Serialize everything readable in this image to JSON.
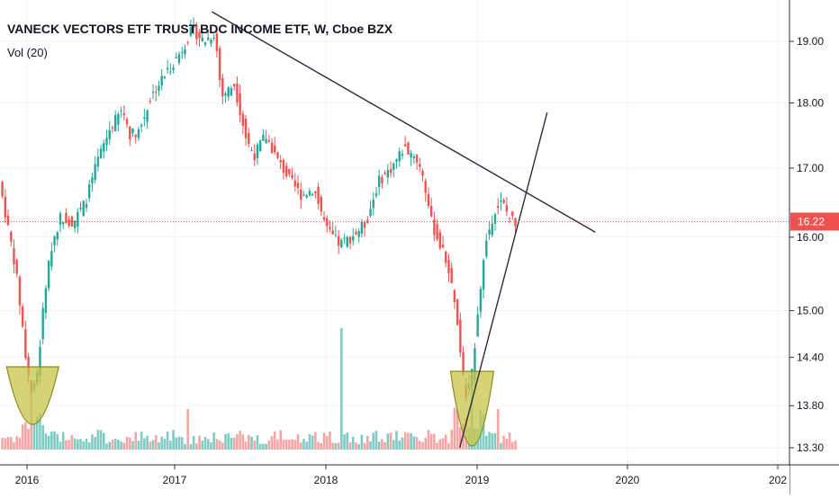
{
  "header": {
    "title": "VANECK VECTORS ETF TRUST BDC INCOME ETF, W, Cboe BZX",
    "volume_label": "Vol (20)"
  },
  "chart_data": {
    "type": "candlestick",
    "symbol": "VANECK VECTORS ETF TRUST BDC INCOME ETF",
    "interval": "W",
    "exchange": "Cboe BZX",
    "y_scale": "log",
    "ylim": [
      13.3,
      19.6
    ],
    "y_ticks": [
      "19.00",
      "18.00",
      "17.00",
      "16.00",
      "15.00",
      "14.40",
      "13.80",
      "13.30"
    ],
    "x_ticks": [
      "2016",
      "2017",
      "2018",
      "2019",
      "2020",
      "202"
    ],
    "last_price": "16.22",
    "colors": {
      "up": "#26a69a",
      "down": "#ef5350",
      "up_vol": "#80cbc4",
      "down_vol": "#f5a6a4",
      "last_line": "#ef5350",
      "cup_fill": "#c8c44a",
      "cup_stroke": "#8a8a20",
      "trendline": "#2b2b3b"
    },
    "price_path": [
      [
        "2015-11-01",
        16.8
      ],
      [
        "2015-11-20",
        16.2
      ],
      [
        "2015-12-10",
        15.6
      ],
      [
        "2015-12-28",
        14.8
      ],
      [
        "2016-01-10",
        14.2
      ],
      [
        "2016-01-22",
        13.9
      ],
      [
        "2016-02-05",
        14.3
      ],
      [
        "2016-02-20",
        15.2
      ],
      [
        "2016-03-10",
        15.9
      ],
      [
        "2016-04-01",
        16.3
      ],
      [
        "2016-05-01",
        16.2
      ],
      [
        "2016-06-01",
        16.5
      ],
      [
        "2016-07-01",
        17.1
      ],
      [
        "2016-08-01",
        17.6
      ],
      [
        "2016-09-01",
        17.9
      ],
      [
        "2016-09-20",
        17.5
      ],
      [
        "2016-10-15",
        17.6
      ],
      [
        "2016-11-10",
        18.1
      ],
      [
        "2016-12-10",
        18.4
      ],
      [
        "2017-01-20",
        18.8
      ],
      [
        "2017-02-20",
        19.2
      ],
      [
        "2017-03-20",
        19.0
      ],
      [
        "2017-04-15",
        19.15
      ],
      [
        "2017-05-01",
        18.1
      ],
      [
        "2017-06-01",
        18.3
      ],
      [
        "2017-07-01",
        17.4
      ],
      [
        "2017-07-20",
        17.2
      ],
      [
        "2017-08-15",
        17.5
      ],
      [
        "2017-09-15",
        17.1
      ],
      [
        "2017-10-15",
        16.8
      ],
      [
        "2017-11-10",
        16.6
      ],
      [
        "2017-12-10",
        16.7
      ],
      [
        "2018-01-10",
        16.1
      ],
      [
        "2018-02-10",
        15.9
      ],
      [
        "2018-03-10",
        16.0
      ],
      [
        "2018-04-15",
        16.2
      ],
      [
        "2018-05-15",
        16.8
      ],
      [
        "2018-06-15",
        17.0
      ],
      [
        "2018-07-15",
        17.3
      ],
      [
        "2018-08-10",
        17.2
      ],
      [
        "2018-08-30",
        16.9
      ],
      [
        "2018-09-20",
        16.2
      ],
      [
        "2018-10-10",
        15.9
      ],
      [
        "2018-10-30",
        15.6
      ],
      [
        "2018-11-20",
        14.9
      ],
      [
        "2018-12-10",
        13.9
      ],
      [
        "2018-12-25",
        14.1
      ],
      [
        "2019-01-15",
        15.3
      ],
      [
        "2019-02-01",
        16.0
      ],
      [
        "2019-02-20",
        16.4
      ],
      [
        "2019-03-10",
        16.5
      ],
      [
        "2019-03-25",
        16.3
      ],
      [
        "2019-04-10",
        16.22
      ]
    ],
    "volume_spikes": [
      [
        "2016-01-10",
        "high"
      ],
      [
        "2017-02-01",
        "medium"
      ],
      [
        "2018-02-05",
        "highest"
      ],
      [
        "2018-12-20",
        "high"
      ],
      [
        "2019-02-20",
        "medium"
      ]
    ],
    "annotations": [
      {
        "type": "trendline",
        "from": [
          "2017-04-01",
          19.5
        ],
        "to": [
          "2019-10-15",
          16.07
        ]
      },
      {
        "type": "trendline",
        "from": [
          "2018-11-20",
          13.3
        ],
        "to": [
          "2019-06-20",
          17.85
        ]
      },
      {
        "type": "cup",
        "center": "2016-01-15",
        "width_months": 4
      },
      {
        "type": "cup",
        "center": "2018-12-20",
        "width_months": 3
      }
    ]
  }
}
